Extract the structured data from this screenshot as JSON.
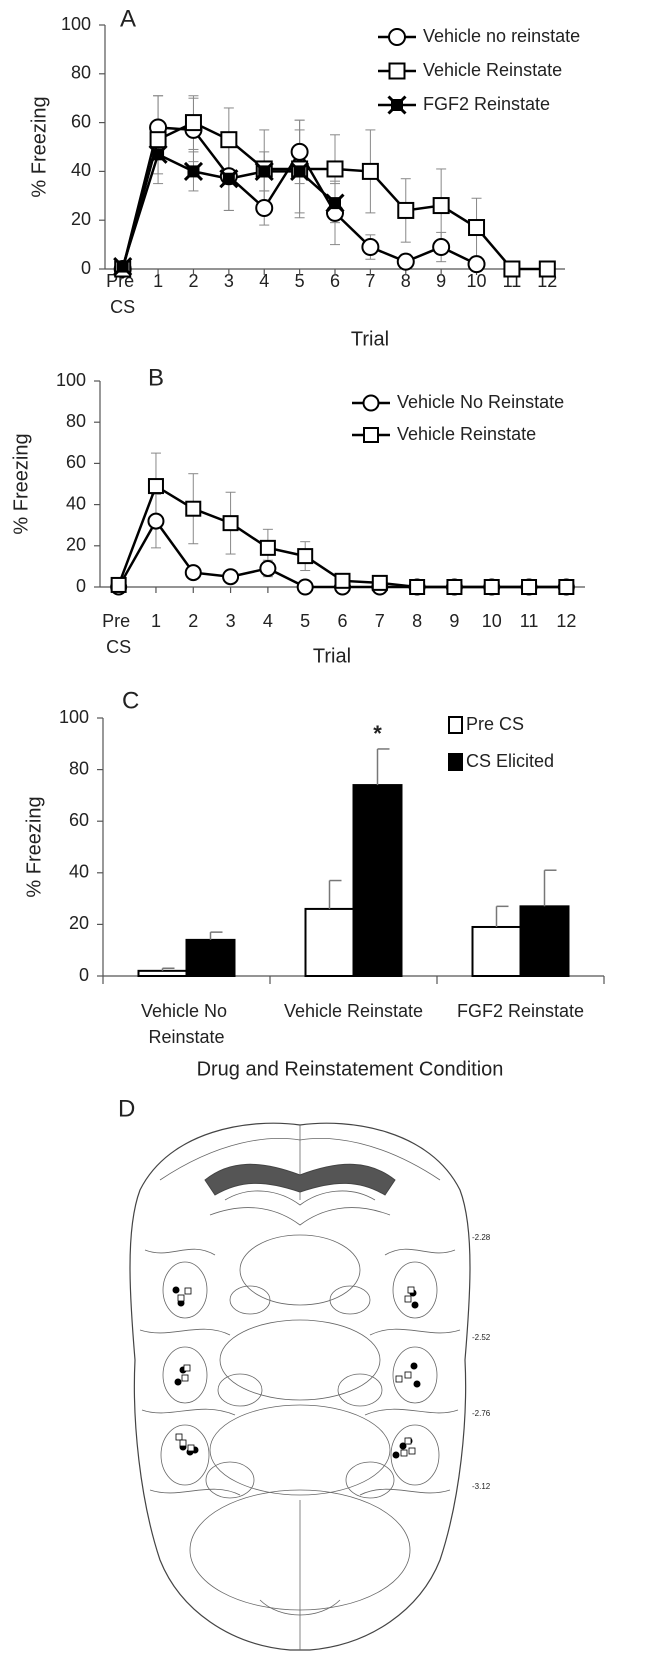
{
  "chart_data": [
    {
      "type": "line",
      "panel_label": "A",
      "y_label": "% Freezing",
      "x_label": "Trial",
      "categories": [
        "Pre CS",
        "1",
        "2",
        "3",
        "4",
        "5",
        "6",
        "7",
        "8",
        "9",
        "10",
        "11",
        "12"
      ],
      "ylim": [
        0,
        100
      ],
      "yticks": [
        0,
        20,
        40,
        60,
        80,
        100
      ],
      "grid": false,
      "legend": "upper right",
      "series": [
        {
          "name": "Vehicle no reinstate",
          "color": "#000000",
          "fill": "#ffffff",
          "marker": "circle",
          "values": [
            0,
            58,
            57,
            38,
            25,
            48,
            23,
            9,
            3,
            9,
            2,
            null,
            null
          ],
          "errors": [
            null,
            13,
            13,
            14,
            7,
            13,
            13,
            5,
            3,
            6,
            3,
            null,
            null
          ]
        },
        {
          "name": "Vehicle Reinstate",
          "color": "#000000",
          "fill": "#ffffff",
          "marker": "square",
          "values": [
            0,
            53,
            60,
            53,
            41,
            41,
            41,
            40,
            24,
            26,
            17,
            0,
            0
          ],
          "errors": [
            null,
            18,
            11,
            13,
            16,
            20,
            14,
            17,
            13,
            15,
            12,
            null,
            null
          ]
        },
        {
          "name": "FGF2 Reinstate",
          "color": "#000000",
          "fill": "#000000",
          "marker": "x-square",
          "values": [
            1,
            47,
            40,
            37,
            40,
            40,
            27,
            null,
            null,
            null,
            null,
            null,
            null
          ],
          "errors": [
            null,
            8,
            8,
            13,
            8,
            17,
            8,
            null,
            null,
            null,
            null,
            null,
            null
          ]
        }
      ]
    },
    {
      "type": "line",
      "panel_label": "B",
      "y_label": "% Freezing",
      "x_label": "Trial",
      "categories": [
        "Pre CS",
        "1",
        "2",
        "3",
        "4",
        "5",
        "6",
        "7",
        "8",
        "9",
        "10",
        "11",
        "12"
      ],
      "ylim": [
        0,
        100
      ],
      "yticks": [
        0,
        20,
        40,
        60,
        80,
        100
      ],
      "grid": false,
      "legend": "upper right",
      "series": [
        {
          "name": "Vehicle No Reinstate",
          "color": "#000000",
          "fill": "#ffffff",
          "marker": "circle",
          "values": [
            0,
            32,
            7,
            5,
            9,
            0,
            0,
            0,
            0,
            0,
            0,
            0,
            0
          ],
          "errors": [
            null,
            13,
            null,
            null,
            4,
            null,
            null,
            null,
            null,
            null,
            null,
            null,
            null
          ]
        },
        {
          "name": "Vehicle Reinstate",
          "color": "#000000",
          "fill": "#ffffff",
          "marker": "square",
          "values": [
            1,
            49,
            38,
            31,
            19,
            15,
            3,
            2,
            0,
            0,
            0,
            0,
            0
          ],
          "errors": [
            null,
            16,
            17,
            15,
            9,
            7,
            2,
            2,
            null,
            null,
            null,
            null,
            null
          ]
        }
      ]
    },
    {
      "type": "bar",
      "panel_label": "C",
      "y_label": "% Freezing",
      "x_label": "Drug and Reinstatement Condition",
      "categories": [
        "Vehicle No Reinstate",
        "Vehicle Reinstate",
        "FGF2 Reinstate"
      ],
      "ylim": [
        0,
        100
      ],
      "yticks": [
        0,
        20,
        40,
        60,
        80,
        100
      ],
      "grid": false,
      "legend": "upper right",
      "annotation": "*",
      "series": [
        {
          "name": "Pre CS",
          "color": "#ffffff",
          "values": [
            2,
            26,
            19
          ],
          "errors": [
            1,
            11,
            8
          ]
        },
        {
          "name": "CS Elicited",
          "color": "#000000",
          "values": [
            14,
            74,
            27
          ],
          "errors": [
            3,
            14,
            14
          ]
        }
      ]
    }
  ],
  "panel_d": {
    "label": "D",
    "levels": [
      "-2.28",
      "-2.52",
      "-2.76",
      "-3.12"
    ]
  }
}
